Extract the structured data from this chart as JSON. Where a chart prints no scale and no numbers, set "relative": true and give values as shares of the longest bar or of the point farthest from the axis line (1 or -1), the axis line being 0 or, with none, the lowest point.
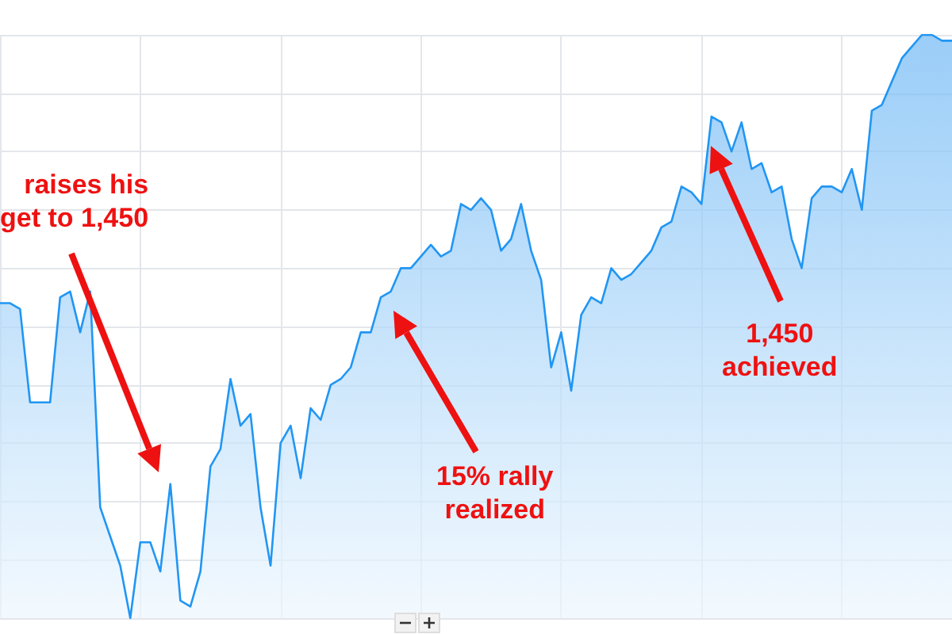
{
  "chart_data": {
    "type": "area",
    "relative": true,
    "grid": true,
    "color": "#2196f3",
    "categories": [
      null,
      null,
      null,
      null,
      null,
      null,
      null,
      null,
      null,
      null,
      null,
      null,
      null,
      null,
      null,
      null,
      null,
      null,
      null,
      null,
      null,
      null,
      null,
      null,
      null,
      null,
      null,
      null,
      null,
      null,
      null,
      null,
      null,
      null,
      null,
      null,
      null,
      null,
      null,
      null,
      null,
      null,
      null,
      null,
      null,
      null,
      null,
      null,
      null,
      null,
      null,
      null,
      null,
      null,
      null,
      null,
      null,
      null,
      null,
      null,
      null,
      null,
      null,
      null,
      null,
      null,
      null,
      null,
      null,
      null,
      null,
      null,
      null,
      null,
      null,
      null,
      null,
      null,
      null,
      null,
      null,
      null,
      null,
      null,
      null,
      null,
      null,
      null,
      null,
      null,
      null,
      null,
      null,
      null,
      null,
      null
    ],
    "values": [
      0.54,
      0.54,
      0.53,
      0.37,
      0.37,
      0.37,
      0.55,
      0.56,
      0.49,
      0.56,
      0.19,
      0.14,
      0.09,
      0,
      0.13,
      0.13,
      0.08,
      0.23,
      0.03,
      0.02,
      0.08,
      0.26,
      0.29,
      0.41,
      0.33,
      0.35,
      0.19,
      0.09,
      0.3,
      0.33,
      0.24,
      0.36,
      0.34,
      0.4,
      0.41,
      0.43,
      0.49,
      0.49,
      0.55,
      0.56,
      0.6,
      0.6,
      0.62,
      0.64,
      0.62,
      0.63,
      0.71,
      0.7,
      0.72,
      0.7,
      0.63,
      0.65,
      0.71,
      0.63,
      0.58,
      0.43,
      0.49,
      0.39,
      0.52,
      0.55,
      0.54,
      0.6,
      0.58,
      0.59,
      0.61,
      0.63,
      0.67,
      0.68,
      0.74,
      0.73,
      0.71,
      0.86,
      0.85,
      0.8,
      0.85,
      0.77,
      0.78,
      0.73,
      0.74,
      0.65,
      0.6,
      0.72,
      0.74,
      0.74,
      0.73,
      0.77,
      0.7,
      0.87,
      0.88,
      0.92,
      0.96,
      0.98,
      1.0,
      1.0,
      0.99,
      0.99
    ],
    "annotations": [
      "raises his\nget to 1,450",
      "15% rally\nrealized",
      "1,450\nachieved"
    ]
  }
}
